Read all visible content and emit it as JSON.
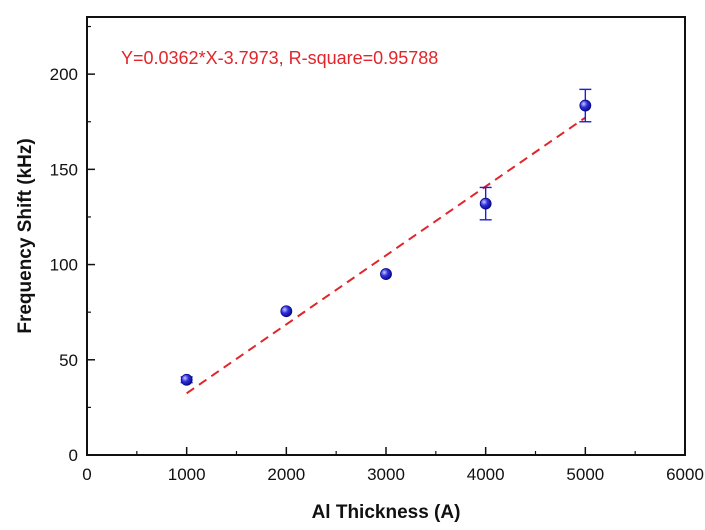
{
  "chart_data": {
    "type": "scatter",
    "title": "",
    "xlabel": "Al Thickness (A)",
    "ylabel": "Frequency Shift (kHz)",
    "xlim": [
      0,
      6000
    ],
    "ylim": [
      0,
      230
    ],
    "xticks": [
      0,
      1000,
      2000,
      3000,
      4000,
      5000,
      6000
    ],
    "yticks": [
      0,
      50,
      100,
      150,
      200
    ],
    "grid": false,
    "legend": "none",
    "series": [
      {
        "points": [
          {
            "x": 1000,
            "y": 39.5,
            "err": 1.5
          },
          {
            "x": 2000,
            "y": 75.5,
            "err": 0
          },
          {
            "x": 3000,
            "y": 95,
            "err": 0
          },
          {
            "x": 4000,
            "y": 132,
            "err": 8.5
          },
          {
            "x": 5000,
            "y": 183.5,
            "err": 8.5
          }
        ],
        "color": "#1f1fd6"
      }
    ],
    "fit": {
      "slope": 0.0362,
      "intercept": -3.7973,
      "x_range": [
        1000,
        5000
      ],
      "color": "#e0262b",
      "style": "dashed"
    },
    "annotation": {
      "text": "Y=0.0362*X-3.7973, R-square=0.95788",
      "color": "#e0262b"
    }
  }
}
